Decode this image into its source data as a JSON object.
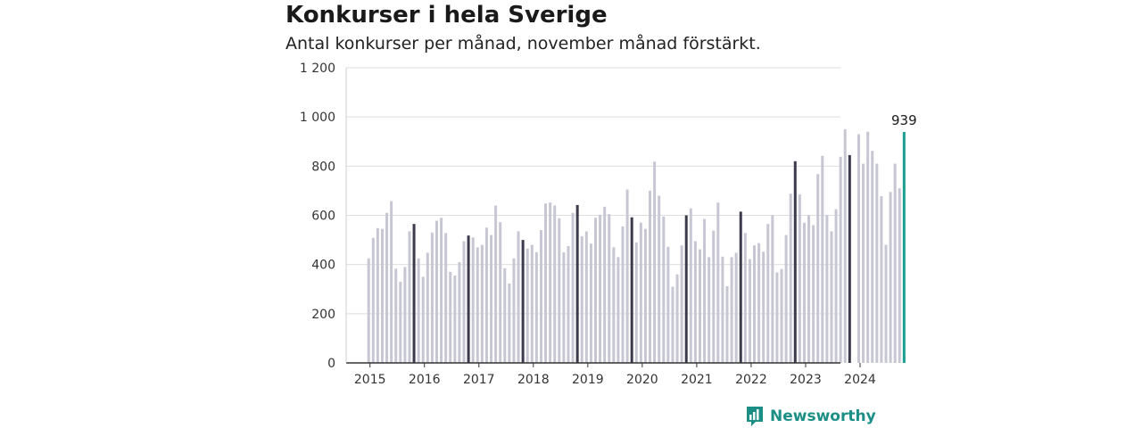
{
  "title": "Konkurser i hela Sverige",
  "subtitle": "Antal konkurser per månad, november månad förstärkt.",
  "brand": {
    "name": "Newsworthy",
    "icon": "newsworthy-logo-icon",
    "color": "#1b8e85"
  },
  "chart_data": {
    "type": "bar",
    "title": "Konkurser i hela Sverige",
    "subtitle": "Antal konkurser per månad, november månad förstärkt.",
    "ylim": [
      0,
      1200
    ],
    "y_ticks": [
      0,
      200,
      400,
      600,
      800,
      1000,
      1200
    ],
    "y_tick_labels": [
      "0",
      "200",
      "400",
      "600",
      "800",
      "1 000",
      "1 200"
    ],
    "x_tick_labels": [
      "2015",
      "2016",
      "2017",
      "2018",
      "2019",
      "2020",
      "2021",
      "2022",
      "2023",
      "2024"
    ],
    "grid": true,
    "colors": {
      "regular": "#c7c6d3",
      "november": "#3c3b4d",
      "latest": "#1d9e8f",
      "grid": "#dedede",
      "axis": "#333333"
    },
    "annotation": {
      "label": "939",
      "month": "2024-11"
    },
    "start_month": "2015-01",
    "highlight_month": "Nov",
    "values": [
      425,
      508,
      548,
      545,
      610,
      658,
      383,
      330,
      390,
      535,
      565,
      425,
      350,
      448,
      530,
      578,
      590,
      528,
      370,
      355,
      410,
      495,
      518,
      510,
      470,
      480,
      550,
      520,
      640,
      572,
      385,
      323,
      425,
      535,
      500,
      465,
      480,
      450,
      540,
      648,
      652,
      640,
      588,
      450,
      475,
      610,
      642,
      515,
      535,
      485,
      590,
      602,
      635,
      605,
      470,
      430,
      555,
      705,
      592,
      490,
      570,
      545,
      700,
      818,
      680,
      595,
      472,
      310,
      360,
      478,
      600,
      628,
      495,
      462,
      585,
      430,
      538,
      652,
      432,
      312,
      430,
      448,
      615,
      528,
      422,
      478,
      487,
      452,
      565,
      600,
      368,
      382,
      520,
      688,
      820,
      685,
      570,
      600,
      560,
      768,
      842,
      602,
      535,
      625,
      838,
      950,
      845,
      0,
      930,
      810,
      940,
      862,
      810,
      678,
      480,
      695,
      810,
      710,
      939
    ]
  }
}
